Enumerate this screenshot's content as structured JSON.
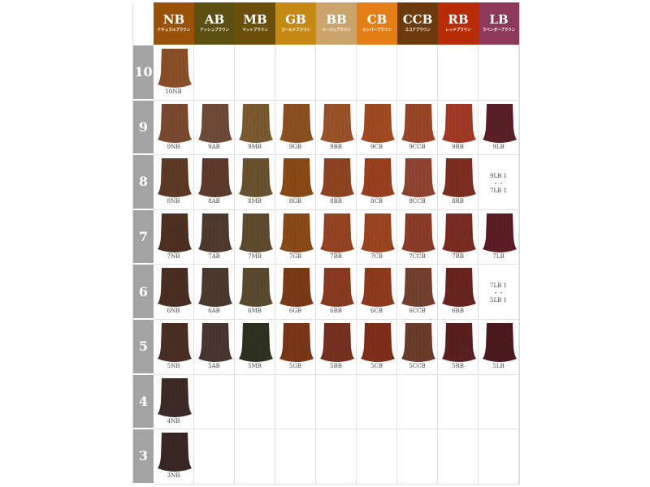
{
  "columns": [
    {
      "code": "NB",
      "name": "ナチュラルブラウン",
      "color": "#9a5208"
    },
    {
      "code": "AB",
      "name": "アッシュブラウン",
      "color": "#5c4f12"
    },
    {
      "code": "MB",
      "name": "マットブラウン",
      "color": "#6a4e0a"
    },
    {
      "code": "GB",
      "name": "ゴールドブラウン",
      "color": "#c48a14"
    },
    {
      "code": "BB",
      "name": "ベージュブラウン",
      "color": "#cba46c"
    },
    {
      "code": "CB",
      "name": "カッパーブラウン",
      "color": "#e47f18"
    },
    {
      "code": "CCB",
      "name": "ココアブラウン",
      "color": "#6c3a0c"
    },
    {
      "code": "RB",
      "name": "レッドブラウン",
      "color": "#b82c08"
    },
    {
      "code": "LB",
      "name": "ラベンダーブラウン",
      "color": "#8c3a58"
    }
  ],
  "rows": [
    {
      "level": "10",
      "cells": [
        {
          "label": "10NB",
          "color": "#8a4e28"
        },
        null,
        null,
        null,
        null,
        null,
        null,
        null,
        null
      ]
    },
    {
      "level": "9",
      "cells": [
        {
          "label": "9NB",
          "color": "#7a4a30"
        },
        {
          "label": "9AB",
          "color": "#6e4a38"
        },
        {
          "label": "9MB",
          "color": "#7a5a30"
        },
        {
          "label": "9GB",
          "color": "#8c5020"
        },
        {
          "label": "9BB",
          "color": "#99522a"
        },
        {
          "label": "9CB",
          "color": "#a04a22"
        },
        {
          "label": "9CCB",
          "color": "#9a4428"
        },
        {
          "label": "9RB",
          "color": "#a03a26"
        },
        {
          "label": "9LB",
          "color": "#5a2028"
        }
      ]
    },
    {
      "level": "8",
      "cells": [
        {
          "label": "8NB",
          "color": "#5e3a26"
        },
        {
          "label": "8AB",
          "color": "#5e3a2c"
        },
        {
          "label": "8MB",
          "color": "#6a5230"
        },
        {
          "label": "8GB",
          "color": "#8a4a18"
        },
        {
          "label": "8BB",
          "color": "#8e4422"
        },
        {
          "label": "8CB",
          "color": "#9a4020"
        },
        {
          "label": "8CCB",
          "color": "#8e4430"
        },
        {
          "label": "8RB",
          "color": "#7e2e20"
        },
        {
          "note": [
            "9LB 1",
            "・・",
            "7LB 1"
          ]
        }
      ]
    },
    {
      "level": "7",
      "cells": [
        {
          "label": "7NB",
          "color": "#4e3022"
        },
        {
          "label": "7AB",
          "color": "#4e3a2e"
        },
        {
          "label": "7MB",
          "color": "#5e4a2e"
        },
        {
          "label": "7GB",
          "color": "#8a4a18"
        },
        {
          "label": "7BB",
          "color": "#944422"
        },
        {
          "label": "7CB",
          "color": "#9a4420"
        },
        {
          "label": "7CCB",
          "color": "#8a3c28"
        },
        {
          "label": "7RB",
          "color": "#7a2c22"
        },
        {
          "label": "7LB",
          "color": "#5a1e24"
        }
      ]
    },
    {
      "level": "6",
      "cells": [
        {
          "label": "6NB",
          "color": "#4a2e22"
        },
        {
          "label": "6AB",
          "color": "#4a3a30"
        },
        {
          "label": "6MB",
          "color": "#5a4a30"
        },
        {
          "label": "6GB",
          "color": "#7a3a18"
        },
        {
          "label": "6BB",
          "color": "#883a20"
        },
        {
          "label": "6CB",
          "color": "#8e3a1e"
        },
        {
          "label": "6CCB",
          "color": "#74402e"
        },
        {
          "label": "6RB",
          "color": "#6a2420"
        },
        {
          "note": [
            "7LB 1",
            "・・",
            "5LB 1"
          ]
        }
      ]
    },
    {
      "level": "5",
      "cells": [
        {
          "label": "5NB",
          "color": "#4a2e24"
        },
        {
          "label": "5AB",
          "color": "#483630"
        },
        {
          "label": "5MB",
          "color": "#2e3020"
        },
        {
          "label": "5GB",
          "color": "#7a3618"
        },
        {
          "label": "5BB",
          "color": "#763020"
        },
        {
          "label": "5CB",
          "color": "#7e2e1a"
        },
        {
          "label": "5CCB",
          "color": "#6a3c2c"
        },
        {
          "label": "5RB",
          "color": "#5a2020"
        },
        {
          "label": "5LB",
          "color": "#4a1a1e"
        }
      ]
    },
    {
      "level": "4",
      "cells": [
        {
          "label": "4NB",
          "color": "#3e2a26"
        },
        null,
        null,
        null,
        null,
        null,
        null,
        null,
        null
      ]
    },
    {
      "level": "3",
      "cells": [
        {
          "label": "3NB",
          "color": "#3a2624"
        },
        null,
        null,
        null,
        null,
        null,
        null,
        null,
        null
      ]
    }
  ]
}
